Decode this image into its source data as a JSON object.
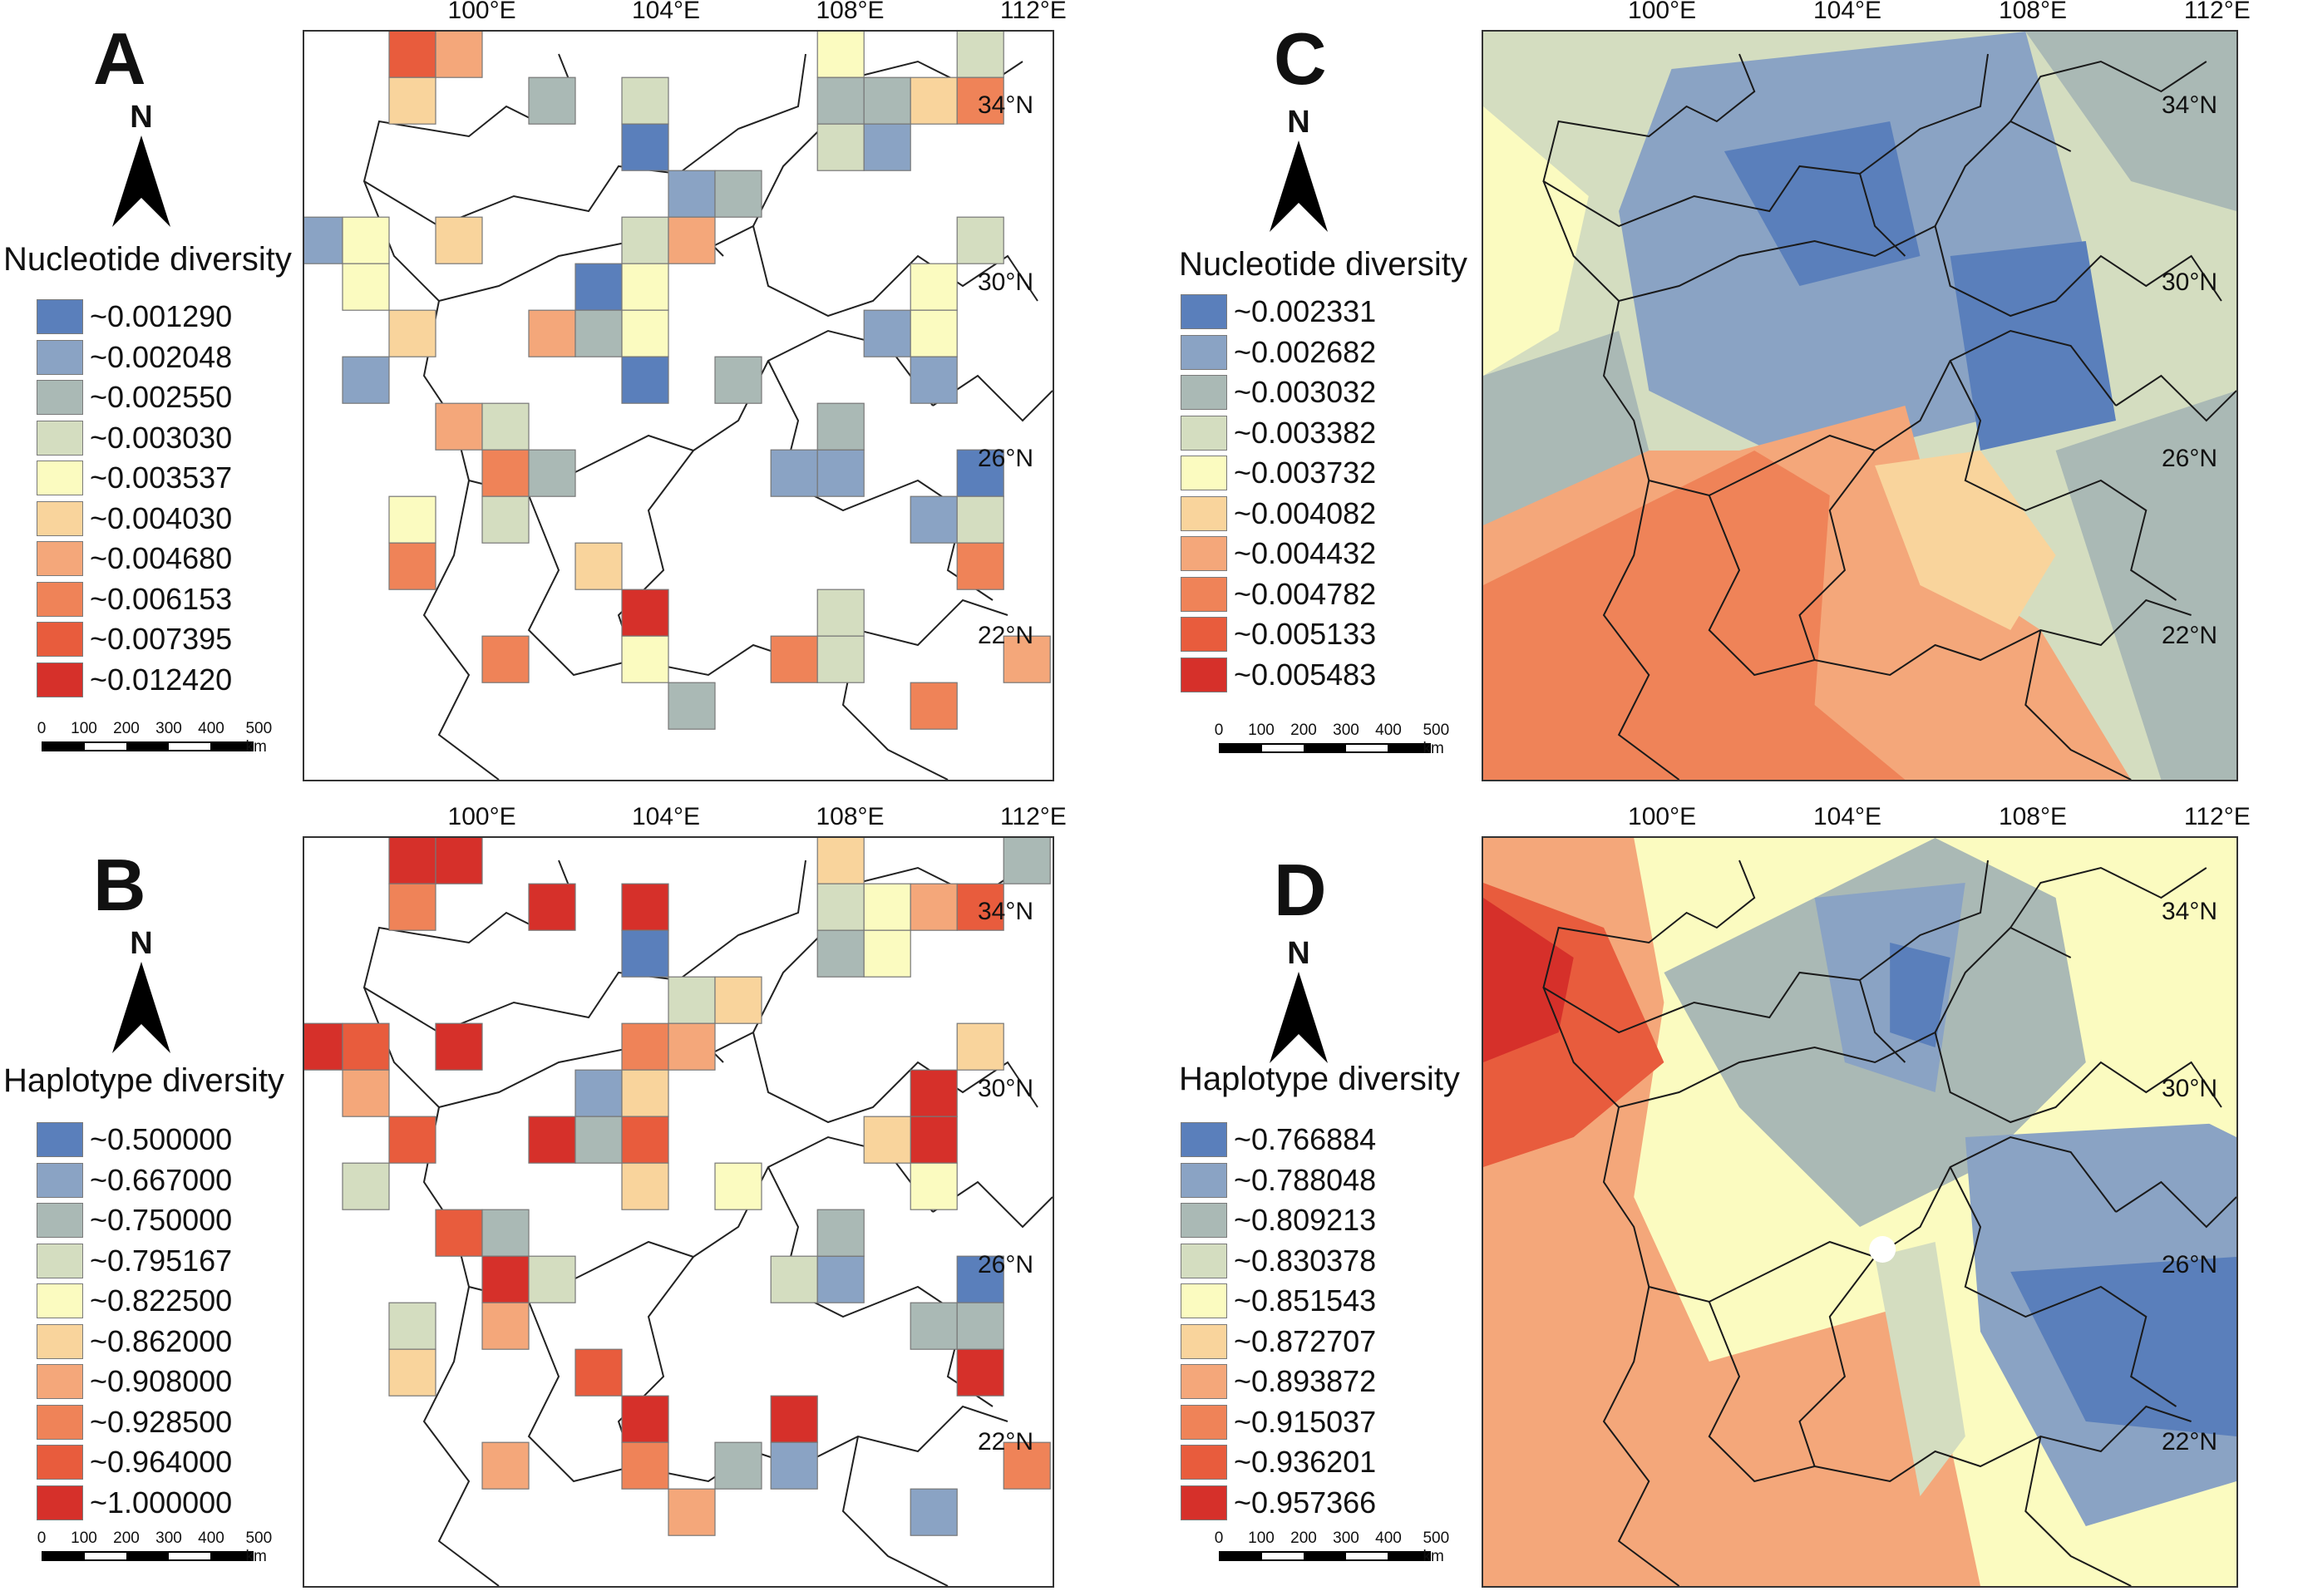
{
  "colors": {
    "nuc": [
      "#5a7fbb",
      "#8aa3c4",
      "#aab9b5",
      "#d4ddc0",
      "#fbfbc0",
      "#f9d49c",
      "#f4a77a",
      "#ef8358",
      "#e85c3d",
      "#d6302a"
    ],
    "hap": [
      "#5a7fbb",
      "#8aa3c4",
      "#aab9b5",
      "#d4ddc0",
      "#fbfbc0",
      "#f9d49c",
      "#f4a77a",
      "#ef8358",
      "#e85c3d",
      "#d6302a"
    ],
    "north_arrow": "#000000"
  },
  "axes": {
    "longitude": [
      "100°E",
      "104°E",
      "108°E",
      "112°E"
    ],
    "latitude": [
      "34°N",
      "30°N",
      "26°N",
      "22°N"
    ]
  },
  "scale": {
    "ticks": [
      "0",
      "100",
      "200",
      "300",
      "400",
      "500 km"
    ]
  },
  "panels": {
    "A": {
      "letter": "A",
      "north": "N",
      "title": "Nucleotide diversity",
      "legend": [
        "~0.001290",
        "~0.002048",
        "~0.002550",
        "~0.003030",
        "~0.003537",
        "~0.004030",
        "~0.004680",
        "~0.006153",
        "~0.007395",
        "~0.012420"
      ],
      "grid_cells": [
        [
          2,
          0,
          8
        ],
        [
          3,
          0,
          6
        ],
        [
          2,
          1,
          5
        ],
        [
          5,
          1,
          2
        ],
        [
          7,
          1,
          3
        ],
        [
          7,
          2,
          0
        ],
        [
          8,
          3,
          1
        ],
        [
          9,
          3,
          2
        ],
        [
          0,
          4,
          1
        ],
        [
          1,
          4,
          4
        ],
        [
          3,
          4,
          5
        ],
        [
          7,
          4,
          3
        ],
        [
          8,
          4,
          6
        ],
        [
          1,
          5,
          4
        ],
        [
          6,
          5,
          0
        ],
        [
          7,
          5,
          4
        ],
        [
          2,
          6,
          5
        ],
        [
          5,
          6,
          6
        ],
        [
          6,
          6,
          2
        ],
        [
          7,
          6,
          4
        ],
        [
          7,
          7,
          0
        ],
        [
          9,
          7,
          2
        ],
        [
          1,
          7,
          1
        ],
        [
          3,
          8,
          6
        ],
        [
          4,
          8,
          3
        ],
        [
          4,
          9,
          7
        ],
        [
          5,
          9,
          2
        ],
        [
          4,
          10,
          3
        ],
        [
          2,
          10,
          4
        ],
        [
          6,
          11,
          5
        ],
        [
          2,
          11,
          7
        ],
        [
          7,
          12,
          9
        ],
        [
          7,
          13,
          4
        ],
        [
          4,
          13,
          7
        ],
        [
          8,
          14,
          2
        ],
        [
          11,
          0,
          4
        ],
        [
          14,
          0,
          3
        ],
        [
          11,
          1,
          2
        ],
        [
          12,
          1,
          2
        ],
        [
          13,
          1,
          5
        ],
        [
          14,
          1,
          7
        ],
        [
          11,
          2,
          3
        ],
        [
          12,
          2,
          1
        ],
        [
          14,
          4,
          3
        ],
        [
          13,
          5,
          4
        ],
        [
          12,
          6,
          1
        ],
        [
          13,
          6,
          4
        ],
        [
          13,
          7,
          1
        ],
        [
          10,
          9,
          1
        ],
        [
          11,
          9,
          1
        ],
        [
          11,
          8,
          2
        ],
        [
          14,
          9,
          0
        ],
        [
          13,
          10,
          1
        ],
        [
          14,
          10,
          3
        ],
        [
          14,
          11,
          7
        ],
        [
          11,
          12,
          3
        ],
        [
          10,
          13,
          7
        ],
        [
          11,
          13,
          3
        ],
        [
          15,
          13,
          6
        ],
        [
          13,
          14,
          7
        ]
      ]
    },
    "B": {
      "letter": "B",
      "north": "N",
      "title": "Haplotype diversity",
      "legend": [
        "~0.500000",
        "~0.667000",
        "~0.750000",
        "~0.795167",
        "~0.822500",
        "~0.862000",
        "~0.908000",
        "~0.928500",
        "~0.964000",
        "~1.000000"
      ],
      "grid_cells": [
        [
          2,
          0,
          9
        ],
        [
          3,
          0,
          9
        ],
        [
          2,
          1,
          7
        ],
        [
          5,
          1,
          9
        ],
        [
          7,
          1,
          9
        ],
        [
          7,
          2,
          0
        ],
        [
          0,
          4,
          9
        ],
        [
          1,
          4,
          8
        ],
        [
          3,
          4,
          9
        ],
        [
          8,
          3,
          3
        ],
        [
          9,
          3,
          5
        ],
        [
          7,
          4,
          7
        ],
        [
          8,
          4,
          6
        ],
        [
          1,
          5,
          6
        ],
        [
          6,
          5,
          1
        ],
        [
          7,
          5,
          5
        ],
        [
          5,
          6,
          9
        ],
        [
          6,
          6,
          2
        ],
        [
          7,
          6,
          8
        ],
        [
          2,
          6,
          8
        ],
        [
          1,
          7,
          3
        ],
        [
          7,
          7,
          5
        ],
        [
          9,
          7,
          4
        ],
        [
          3,
          8,
          8
        ],
        [
          4,
          8,
          2
        ],
        [
          4,
          9,
          9
        ],
        [
          5,
          9,
          3
        ],
        [
          2,
          10,
          3
        ],
        [
          4,
          10,
          6
        ],
        [
          2,
          11,
          5
        ],
        [
          6,
          11,
          8
        ],
        [
          7,
          12,
          9
        ],
        [
          10,
          12,
          9
        ],
        [
          7,
          13,
          7
        ],
        [
          4,
          13,
          6
        ],
        [
          8,
          14,
          6
        ],
        [
          9,
          13,
          2
        ],
        [
          10,
          13,
          1
        ],
        [
          11,
          0,
          5
        ],
        [
          15,
          0,
          2
        ],
        [
          11,
          1,
          3
        ],
        [
          12,
          1,
          4
        ],
        [
          13,
          1,
          6
        ],
        [
          14,
          1,
          8
        ],
        [
          11,
          2,
          2
        ],
        [
          12,
          2,
          4
        ],
        [
          14,
          4,
          5
        ],
        [
          13,
          5,
          9
        ],
        [
          13,
          6,
          9
        ],
        [
          12,
          6,
          5
        ],
        [
          13,
          7,
          4
        ],
        [
          10,
          9,
          3
        ],
        [
          11,
          9,
          1
        ],
        [
          11,
          8,
          2
        ],
        [
          14,
          9,
          0
        ],
        [
          13,
          10,
          2
        ],
        [
          14,
          10,
          2
        ],
        [
          14,
          11,
          9
        ],
        [
          15,
          13,
          7
        ],
        [
          13,
          14,
          1
        ]
      ]
    },
    "C": {
      "letter": "C",
      "north": "N",
      "title": "Nucleotide diversity",
      "legend": [
        "~0.002331",
        "~0.002682",
        "~0.003032",
        "~0.003382",
        "~0.003732",
        "~0.004082",
        "~0.004432",
        "~0.004782",
        "~0.005133",
        "~0.005483"
      ]
    },
    "D": {
      "letter": "D",
      "north": "N",
      "title": "Haplotype diversity",
      "legend": [
        "~0.766884",
        "~0.788048",
        "~0.809213",
        "~0.830378",
        "~0.851543",
        "~0.872707",
        "~0.893872",
        "~0.915037",
        "~0.936201",
        "~0.957366"
      ]
    }
  }
}
